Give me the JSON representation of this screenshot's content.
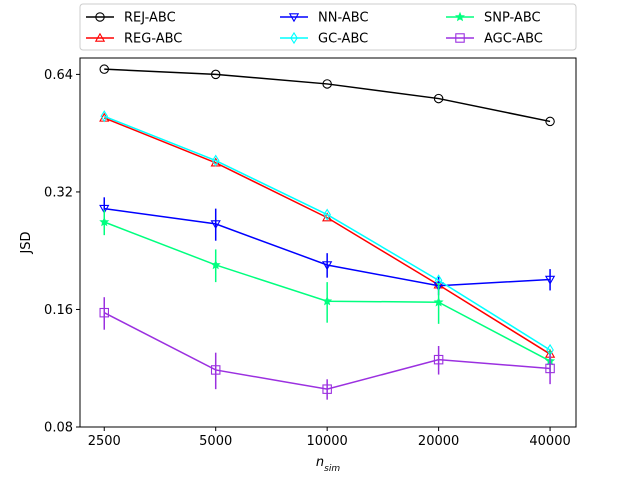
{
  "chart_data": {
    "type": "line",
    "title": "",
    "xlabel": "n",
    "xlabel_sub": "sim",
    "ylabel": "JSD",
    "x_scale": "log2",
    "y_scale": "log2",
    "x": [
      2500,
      5000,
      10000,
      20000,
      40000
    ],
    "xtick_labels": [
      "2500",
      "5000",
      "10000",
      "20000",
      "40000"
    ],
    "yticks": [
      0.08,
      0.16,
      0.32,
      0.64
    ],
    "ytick_labels": [
      "0.08",
      "0.16",
      "0.32",
      "0.64"
    ],
    "xlim": [
      2150,
      47000
    ],
    "ylim": [
      0.08,
      0.705
    ],
    "legend_position": "top-center",
    "series": [
      {
        "name": "REJ-ABC",
        "color": "#000000",
        "marker": "circle",
        "values": [
          0.66,
          0.64,
          0.605,
          0.555,
          0.485
        ],
        "err": null
      },
      {
        "name": "REG-ABC",
        "color": "#ff0000",
        "marker": "triangle-up",
        "values": [
          0.495,
          0.38,
          0.275,
          0.185,
          0.123
        ],
        "err": null
      },
      {
        "name": "NN-ABC",
        "color": "#0000ff",
        "marker": "triangle-down",
        "values": [
          0.29,
          0.265,
          0.208,
          0.184,
          0.191
        ],
        "err": [
          0.02,
          0.025,
          0.015,
          0.01,
          0.012
        ]
      },
      {
        "name": "GC-ABC",
        "color": "#00ffff",
        "marker": "diamond",
        "values": [
          0.5,
          0.385,
          0.28,
          0.19,
          0.126
        ],
        "err": null
      },
      {
        "name": "SNP-ABC",
        "color": "#00ff7f",
        "marker": "star",
        "values": [
          0.268,
          0.208,
          0.168,
          0.167,
          0.118
        ],
        "err": [
          0.02,
          0.02,
          0.02,
          0.02,
          0.008
        ]
      },
      {
        "name": "AGC-ABC",
        "color": "#9b30e0",
        "marker": "square",
        "values": [
          0.157,
          0.112,
          0.1,
          0.119,
          0.113
        ],
        "err": [
          0.015,
          0.012,
          0.006,
          0.01,
          0.01
        ]
      }
    ]
  }
}
